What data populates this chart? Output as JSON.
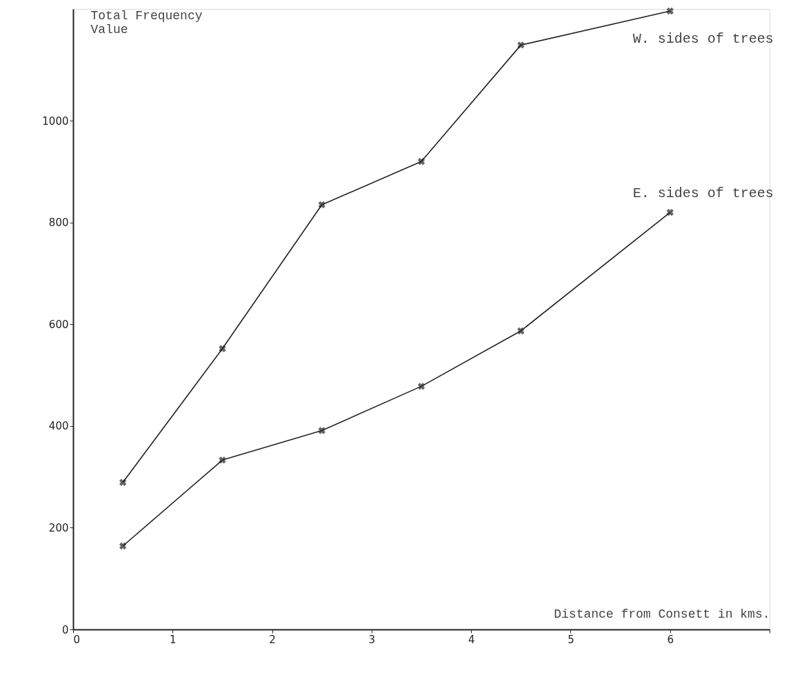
{
  "chart_data": {
    "type": "line",
    "xlabel": "Distance from Consett in kms.",
    "ylabel": "Total Frequency\nValue",
    "x": [
      0.5,
      1.5,
      2.5,
      3.5,
      4.5,
      6
    ],
    "series": [
      {
        "name": "W. sides of trees",
        "color": "#222222",
        "values": [
          289,
          552,
          835,
          920,
          1149,
          1216
        ]
      },
      {
        "name": "E. sides of trees",
        "color": "#222222",
        "values": [
          164,
          333,
          391,
          478,
          587,
          820
        ]
      }
    ],
    "xlim": [
      0,
      7
    ],
    "xticks": [
      0,
      1,
      2,
      3,
      4,
      5,
      6,
      {
        "value": 7,
        "label": null
      }
    ],
    "ylim": [
      0,
      1220
    ],
    "yticks": [
      0,
      200,
      400,
      600,
      800,
      1000
    ],
    "grid": false,
    "marker": "cross",
    "line_style": "solid"
  }
}
